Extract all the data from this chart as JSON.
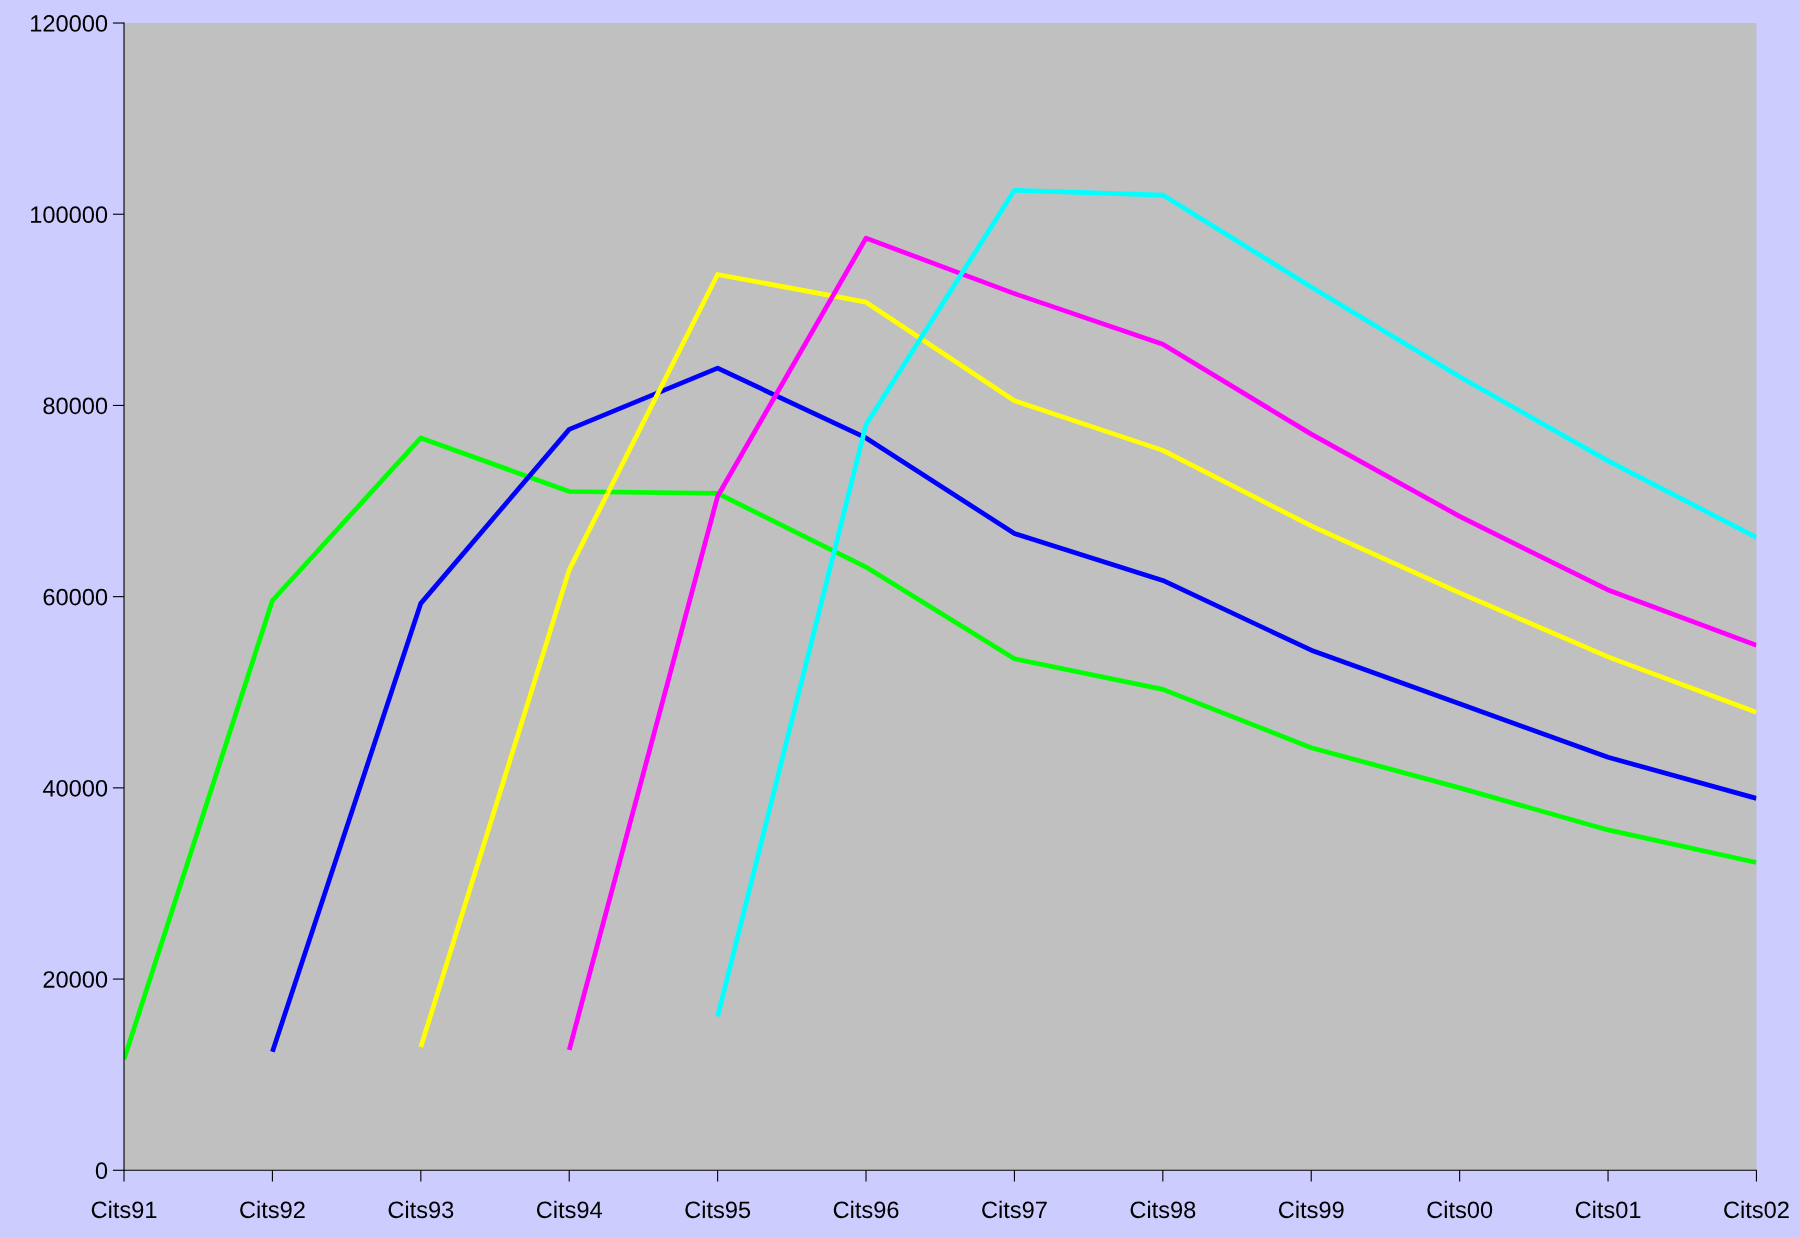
{
  "chart_data": {
    "type": "line",
    "categories": [
      "Cits91",
      "Cits92",
      "Cits93",
      "Cits94",
      "Cits95",
      "Cits96",
      "Cits97",
      "Cits98",
      "Cits99",
      "Cits00",
      "Cits01",
      "Cits02"
    ],
    "series": [
      {
        "color": "#00ff00",
        "values": [
          11600,
          59600,
          76600,
          71000,
          70800,
          63100,
          53500,
          50300,
          44200,
          40000,
          35600,
          32200
        ]
      },
      {
        "color": "#0000ff",
        "values": [
          null,
          12400,
          59300,
          77500,
          83900,
          76600,
          66600,
          61700,
          54400,
          48800,
          43200,
          38900
        ]
      },
      {
        "color": "#ffff00",
        "values": [
          null,
          null,
          12900,
          62800,
          93700,
          90800,
          80500,
          75300,
          67400,
          60400,
          53700,
          47900
        ]
      },
      {
        "color": "#ff00ff",
        "values": [
          null,
          null,
          null,
          12600,
          70500,
          97500,
          91700,
          86400,
          77000,
          68400,
          60700,
          54900
        ]
      },
      {
        "color": "#00ffff",
        "values": [
          null,
          null,
          null,
          null,
          16100,
          78000,
          102500,
          102000,
          92400,
          83000,
          74200,
          66200
        ]
      }
    ],
    "ylim": [
      0,
      120000
    ],
    "yticks": [
      0,
      20000,
      40000,
      60000,
      80000,
      100000,
      120000
    ],
    "marker": "none",
    "line_style": "solid"
  }
}
